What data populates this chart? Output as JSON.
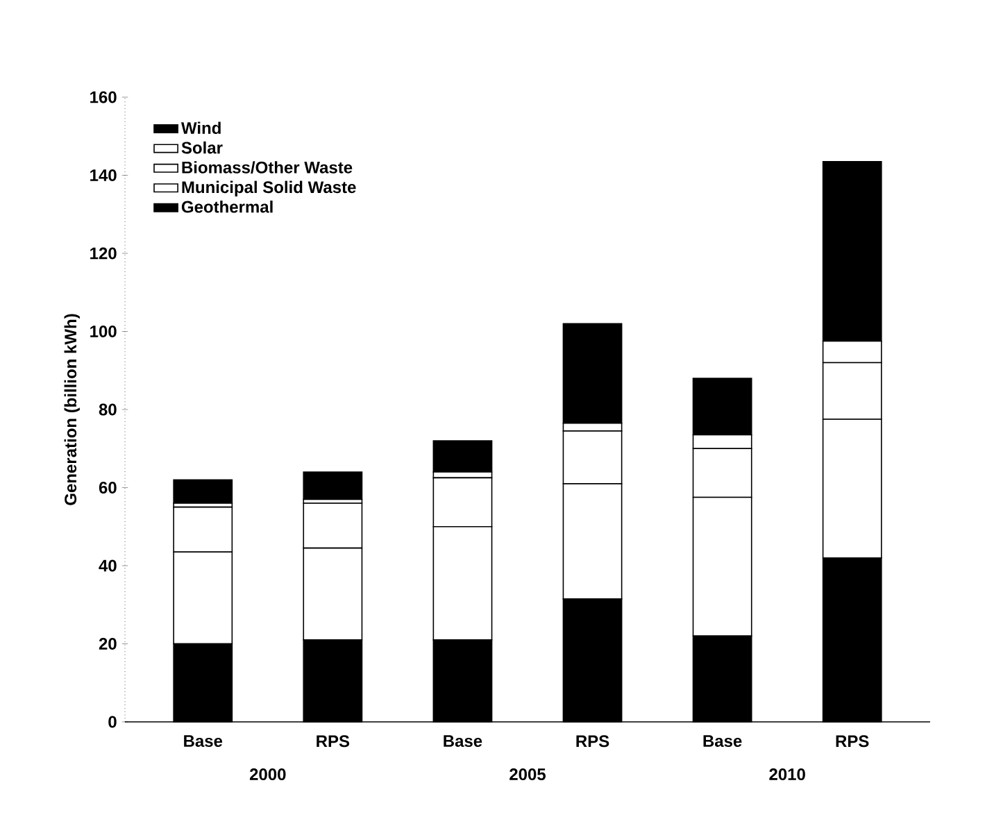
{
  "chart_data": {
    "type": "bar",
    "stacked": true,
    "ylabel": "Generation (billion kWh)",
    "categories": [
      "Base",
      "RPS",
      "Base",
      "RPS",
      "Base",
      "RPS"
    ],
    "annotations": [
      "2000",
      "2005",
      "2010"
    ],
    "series": [
      {
        "name": "Geothermal",
        "color": "#000000",
        "values": [
          20,
          21,
          21,
          31.5,
          22,
          42
        ]
      },
      {
        "name": "Municipal Solid Waste",
        "color": "#ffffff",
        "values": [
          23.5,
          23.5,
          29,
          29.5,
          35.5,
          35.5
        ]
      },
      {
        "name": "Biomass/Other Waste",
        "color": "#ffffff",
        "values": [
          11.5,
          11.5,
          12.5,
          13.5,
          12.5,
          14.5
        ]
      },
      {
        "name": "Solar",
        "color": "#ffffff",
        "values": [
          1,
          1,
          1.5,
          2,
          3.5,
          5.5
        ]
      },
      {
        "name": "Wind",
        "color": "#000000",
        "values": [
          6,
          7,
          8,
          25.5,
          14.5,
          46
        ]
      }
    ],
    "ylim": [
      0,
      160
    ],
    "yticks": [
      0,
      20,
      40,
      60,
      80,
      100,
      120,
      140,
      160
    ],
    "grid": false,
    "legend": "top left"
  }
}
